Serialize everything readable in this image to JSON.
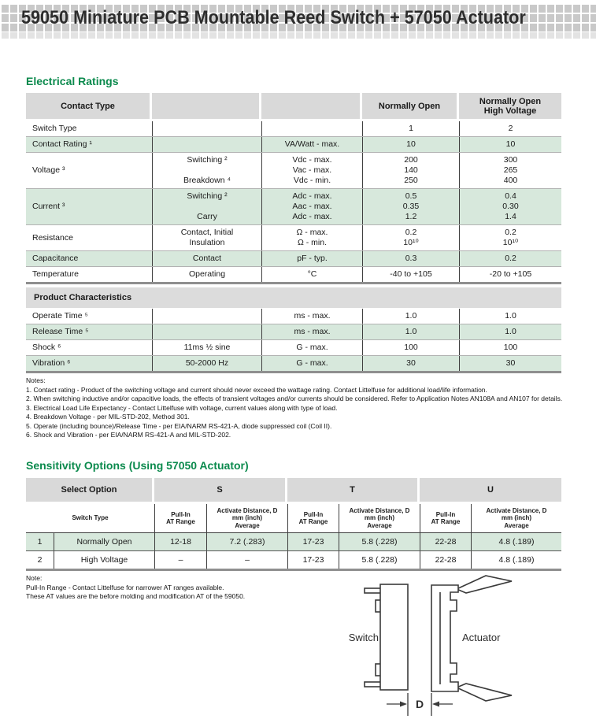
{
  "header": {
    "title": "59050 Miniature PCB Mountable Reed Switch + 57050 Actuator"
  },
  "colors": {
    "accent_green": "#0b8a4d",
    "table_header_gray": "#d9d9d9",
    "row_tint_green": "#d7e8dc",
    "banner_gray": "#c9c9c9",
    "thick_rule_gray": "#8f8f8f"
  },
  "electrical_ratings": {
    "heading": "Electrical Ratings",
    "columns": [
      [
        "Contact Type"
      ],
      [
        ""
      ],
      [
        ""
      ],
      [
        "Normally Open"
      ],
      [
        "Normally Open",
        "High Voltage"
      ]
    ],
    "rows": [
      {
        "tint": false,
        "cells": [
          [
            "Switch Type"
          ],
          [
            ""
          ],
          [
            ""
          ],
          [
            "1"
          ],
          [
            "2"
          ]
        ]
      },
      {
        "tint": true,
        "cells": [
          [
            "Contact Rating ¹"
          ],
          [
            ""
          ],
          [
            "VA/Watt - max."
          ],
          [
            "10"
          ],
          [
            "10"
          ]
        ]
      },
      {
        "tint": false,
        "cells": [
          [
            "Voltage ³"
          ],
          [
            "Switching ²",
            "",
            "Breakdown ⁴"
          ],
          [
            "Vdc - max.",
            "Vac - max.",
            "Vdc - min."
          ],
          [
            "200",
            "140",
            "250"
          ],
          [
            "300",
            "265",
            "400"
          ]
        ]
      },
      {
        "tint": true,
        "cells": [
          [
            "Current ³"
          ],
          [
            "Switching ²",
            "",
            "Carry"
          ],
          [
            "Adc - max.",
            "Aac - max.",
            "Adc - max."
          ],
          [
            "0.5",
            "0.35",
            "1.2"
          ],
          [
            "0.4",
            "0.30",
            "1.4"
          ]
        ]
      },
      {
        "tint": false,
        "cells": [
          [
            "Resistance"
          ],
          [
            "Contact, Initial",
            "Insulation"
          ],
          [
            "Ω - max.",
            "Ω - min."
          ],
          [
            "0.2",
            "10¹⁰"
          ],
          [
            "0.2",
            "10¹⁰"
          ]
        ]
      },
      {
        "tint": true,
        "cells": [
          [
            "Capacitance"
          ],
          [
            "Contact"
          ],
          [
            "pF - typ."
          ],
          [
            "0.3"
          ],
          [
            "0.2"
          ]
        ]
      },
      {
        "tint": false,
        "cells": [
          [
            "Temperature"
          ],
          [
            "Operating"
          ],
          [
            "°C"
          ],
          [
            "-40 to +105"
          ],
          [
            "-20 to +105"
          ]
        ]
      }
    ]
  },
  "product_characteristics": {
    "heading": "Product Characteristics",
    "rows": [
      {
        "tint": false,
        "cells": [
          [
            "Operate Time ⁵"
          ],
          [
            ""
          ],
          [
            "ms - max."
          ],
          [
            "1.0"
          ],
          [
            "1.0"
          ]
        ]
      },
      {
        "tint": true,
        "cells": [
          [
            "Release Time ⁵"
          ],
          [
            ""
          ],
          [
            "ms - max."
          ],
          [
            "1.0"
          ],
          [
            "1.0"
          ]
        ]
      },
      {
        "tint": false,
        "cells": [
          [
            "Shock ⁶"
          ],
          [
            "11ms ½ sine"
          ],
          [
            "G - max."
          ],
          [
            "100"
          ],
          [
            "100"
          ]
        ]
      },
      {
        "tint": true,
        "cells": [
          [
            "Vibration ⁶"
          ],
          [
            "50-2000 Hz"
          ],
          [
            "G - max."
          ],
          [
            "30"
          ],
          [
            "30"
          ]
        ]
      }
    ]
  },
  "notes": {
    "label": "Notes:",
    "items": [
      "1. Contact rating - Product of the switching voltage and current should never exceed the wattage rating. Contact Littelfuse for additional load/life information.",
      "2. When switching inductive and/or capacitive loads, the effects of transient voltages and/or currents should be considered. Refer to Application Notes AN108A and AN107 for details.",
      "3. Electrical Load Life Expectancy - Contact Littelfuse with voltage, current values along with type of load.",
      "4. Breakdown Voltage - per MIL-STD-202, Method 301.",
      "5. Operate (including bounce)/Release Time - per EIA/NARM RS-421-A, diode suppressed coil (Coil II).",
      "6. Shock and Vibration - per EIA/NARM RS-421-A and MIL-STD-202."
    ]
  },
  "sensitivity": {
    "heading": "Sensitivity Options (Using 57050 Actuator)",
    "group_headers": [
      "Select Option",
      "S",
      "T",
      "U"
    ],
    "sub_headers": [
      [
        "Switch Type"
      ],
      [
        "Pull-In",
        "AT Range"
      ],
      [
        "Activate Distance, D",
        "mm (inch)",
        "Average"
      ],
      [
        "Pull-In",
        "AT Range"
      ],
      [
        "Activate Distance, D",
        "mm (inch)",
        "Average"
      ],
      [
        "Pull-In",
        "AT Range"
      ],
      [
        "Activate Distance, D",
        "mm (inch)",
        "Average"
      ]
    ],
    "rows": [
      {
        "tint": true,
        "cells": [
          "1",
          "Normally Open",
          "12-18",
          "7.2 (.283)",
          "17-23",
          "5.8 (.228)",
          "22-28",
          "4.8 (.189)"
        ]
      },
      {
        "tint": false,
        "cells": [
          "2",
          "High Voltage",
          "–",
          "–",
          "17-23",
          "5.8 (.228)",
          "22-28",
          "4.8 (.189)"
        ]
      }
    ]
  },
  "sensitivity_note": {
    "label": "Note:",
    "lines": [
      "Pull-In Range - Contact Littelfuse for narrower AT ranges available.",
      "These AT values are the before molding and modification AT of the 59050."
    ]
  },
  "diagram": {
    "switch_label": "Switch",
    "actuator_label": "Actuator",
    "dimension_label": "D"
  }
}
